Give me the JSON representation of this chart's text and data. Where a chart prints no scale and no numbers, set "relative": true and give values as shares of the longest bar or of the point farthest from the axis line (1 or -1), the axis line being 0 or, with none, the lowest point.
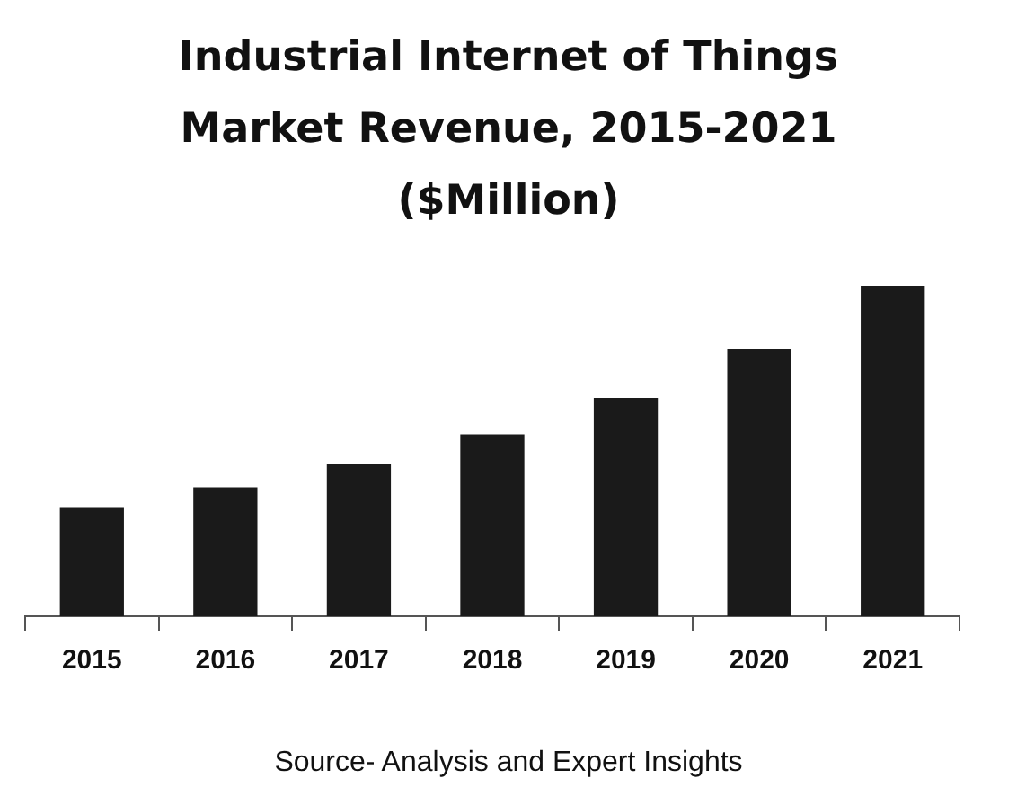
{
  "chart_data": {
    "type": "bar",
    "title": "Industrial Internet of Things Market Revenue, 2015-2021 ($Million)",
    "categories": [
      "2015",
      "2016",
      "2017",
      "2018",
      "2019",
      "2020",
      "2021"
    ],
    "values": [
      0.33,
      0.39,
      0.46,
      0.55,
      0.66,
      0.81,
      1
    ],
    "color": "#1a1a1a",
    "relative": true,
    "grid": false,
    "legend": false,
    "annotations": [
      "Source- Analysis and Expert Insights"
    ]
  }
}
